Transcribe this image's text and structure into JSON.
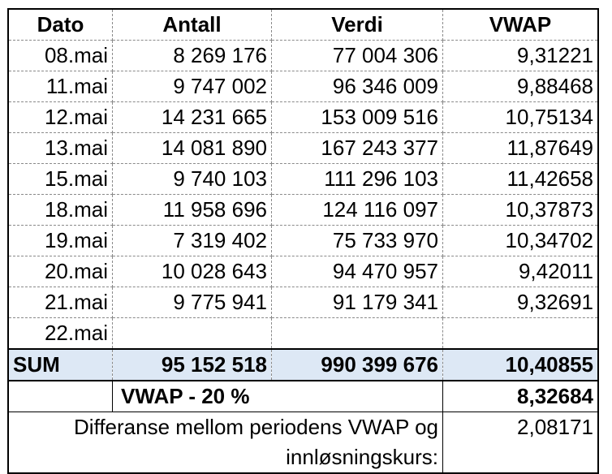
{
  "headers": [
    "Dato",
    "Antall",
    "Verdi",
    "VWAP"
  ],
  "rows": [
    {
      "dato": "08.mai",
      "antall": "8 269 176",
      "verdi": "77 004 306",
      "vwap": "9,31221"
    },
    {
      "dato": "11.mai",
      "antall": "9 747 002",
      "verdi": "96 346 009",
      "vwap": "9,88468"
    },
    {
      "dato": "12.mai",
      "antall": "14 231 665",
      "verdi": "153 009 516",
      "vwap": "10,75134"
    },
    {
      "dato": "13.mai",
      "antall": "14 081 890",
      "verdi": "167 243 377",
      "vwap": "11,87649"
    },
    {
      "dato": "15.mai",
      "antall": "9 740 103",
      "verdi": "111 296 103",
      "vwap": "11,42658"
    },
    {
      "dato": "18.mai",
      "antall": "11 958 696",
      "verdi": "124 116 097",
      "vwap": "10,37873"
    },
    {
      "dato": "19.mai",
      "antall": "7 319 402",
      "verdi": "75 733 970",
      "vwap": "10,34702"
    },
    {
      "dato": "20.mai",
      "antall": "10 028 643",
      "verdi": "94 470 957",
      "vwap": "9,42011"
    },
    {
      "dato": "21.mai",
      "antall": "9 775 941",
      "verdi": "91 179 341",
      "vwap": "9,32691"
    },
    {
      "dato": "22.mai",
      "antall": "",
      "verdi": "",
      "vwap": ""
    }
  ],
  "sum": {
    "label": "SUM",
    "antall": "95 152 518",
    "verdi": "990 399 676",
    "vwap": "10,40855"
  },
  "vwap20": {
    "label": "VWAP - 20 %",
    "value": "8,32684"
  },
  "difference": {
    "label_line1": "Differanse mellom periodens VWAP og",
    "label_line2": "innløsningskurs:",
    "value": "2,08171"
  }
}
